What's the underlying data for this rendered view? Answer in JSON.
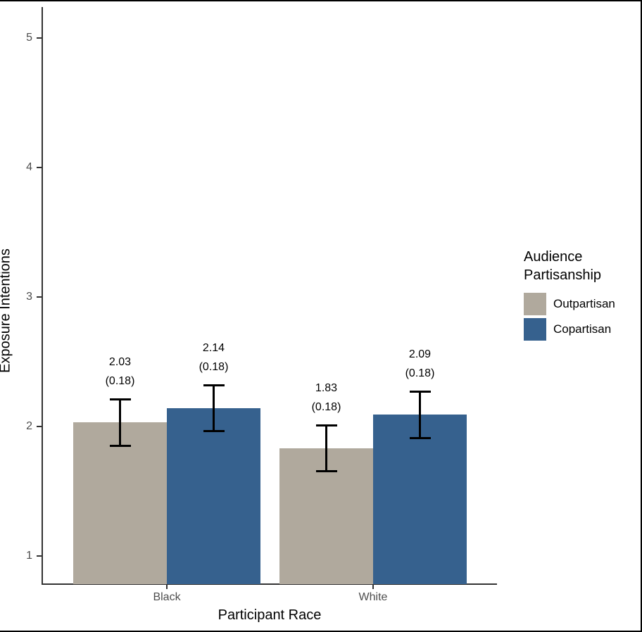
{
  "figure": {
    "background_color": "#ffffff",
    "frame_color": "#000000"
  },
  "chart_data": {
    "type": "bar",
    "title": "",
    "xlabel": "Participant Race",
    "ylabel": "Exposure Intentions",
    "categories": [
      "Black",
      "White"
    ],
    "y_ticks": [
      1,
      2,
      3,
      4,
      5
    ],
    "y_axis_range_shown": [
      0.78,
      5.2
    ],
    "grid": "off",
    "legend": {
      "title_lines": [
        "Audience",
        "Partisanship"
      ],
      "position": "right",
      "entries": [
        {
          "label": "Outpartisan",
          "color": "#B0A99D"
        },
        {
          "label": "Copartisan",
          "color": "#36618E"
        }
      ]
    },
    "series": [
      {
        "name": "Outpartisan",
        "color": "#B0A99D",
        "values": [
          2.03,
          1.83
        ],
        "standard_errors": [
          0.18,
          0.18
        ],
        "bar_labels": [
          [
            "2.03",
            "(0.18)"
          ],
          [
            "1.83",
            "(0.18)"
          ]
        ]
      },
      {
        "name": "Copartisan",
        "color": "#36618E",
        "values": [
          2.14,
          2.09
        ],
        "standard_errors": [
          0.18,
          0.18
        ],
        "bar_labels": [
          [
            "2.14",
            "(0.18)"
          ],
          [
            "2.09",
            "(0.18)"
          ]
        ]
      }
    ],
    "error_bar_color": "#000000",
    "axis_color": "#333333",
    "tick_label_color": "#4d4d4d"
  }
}
